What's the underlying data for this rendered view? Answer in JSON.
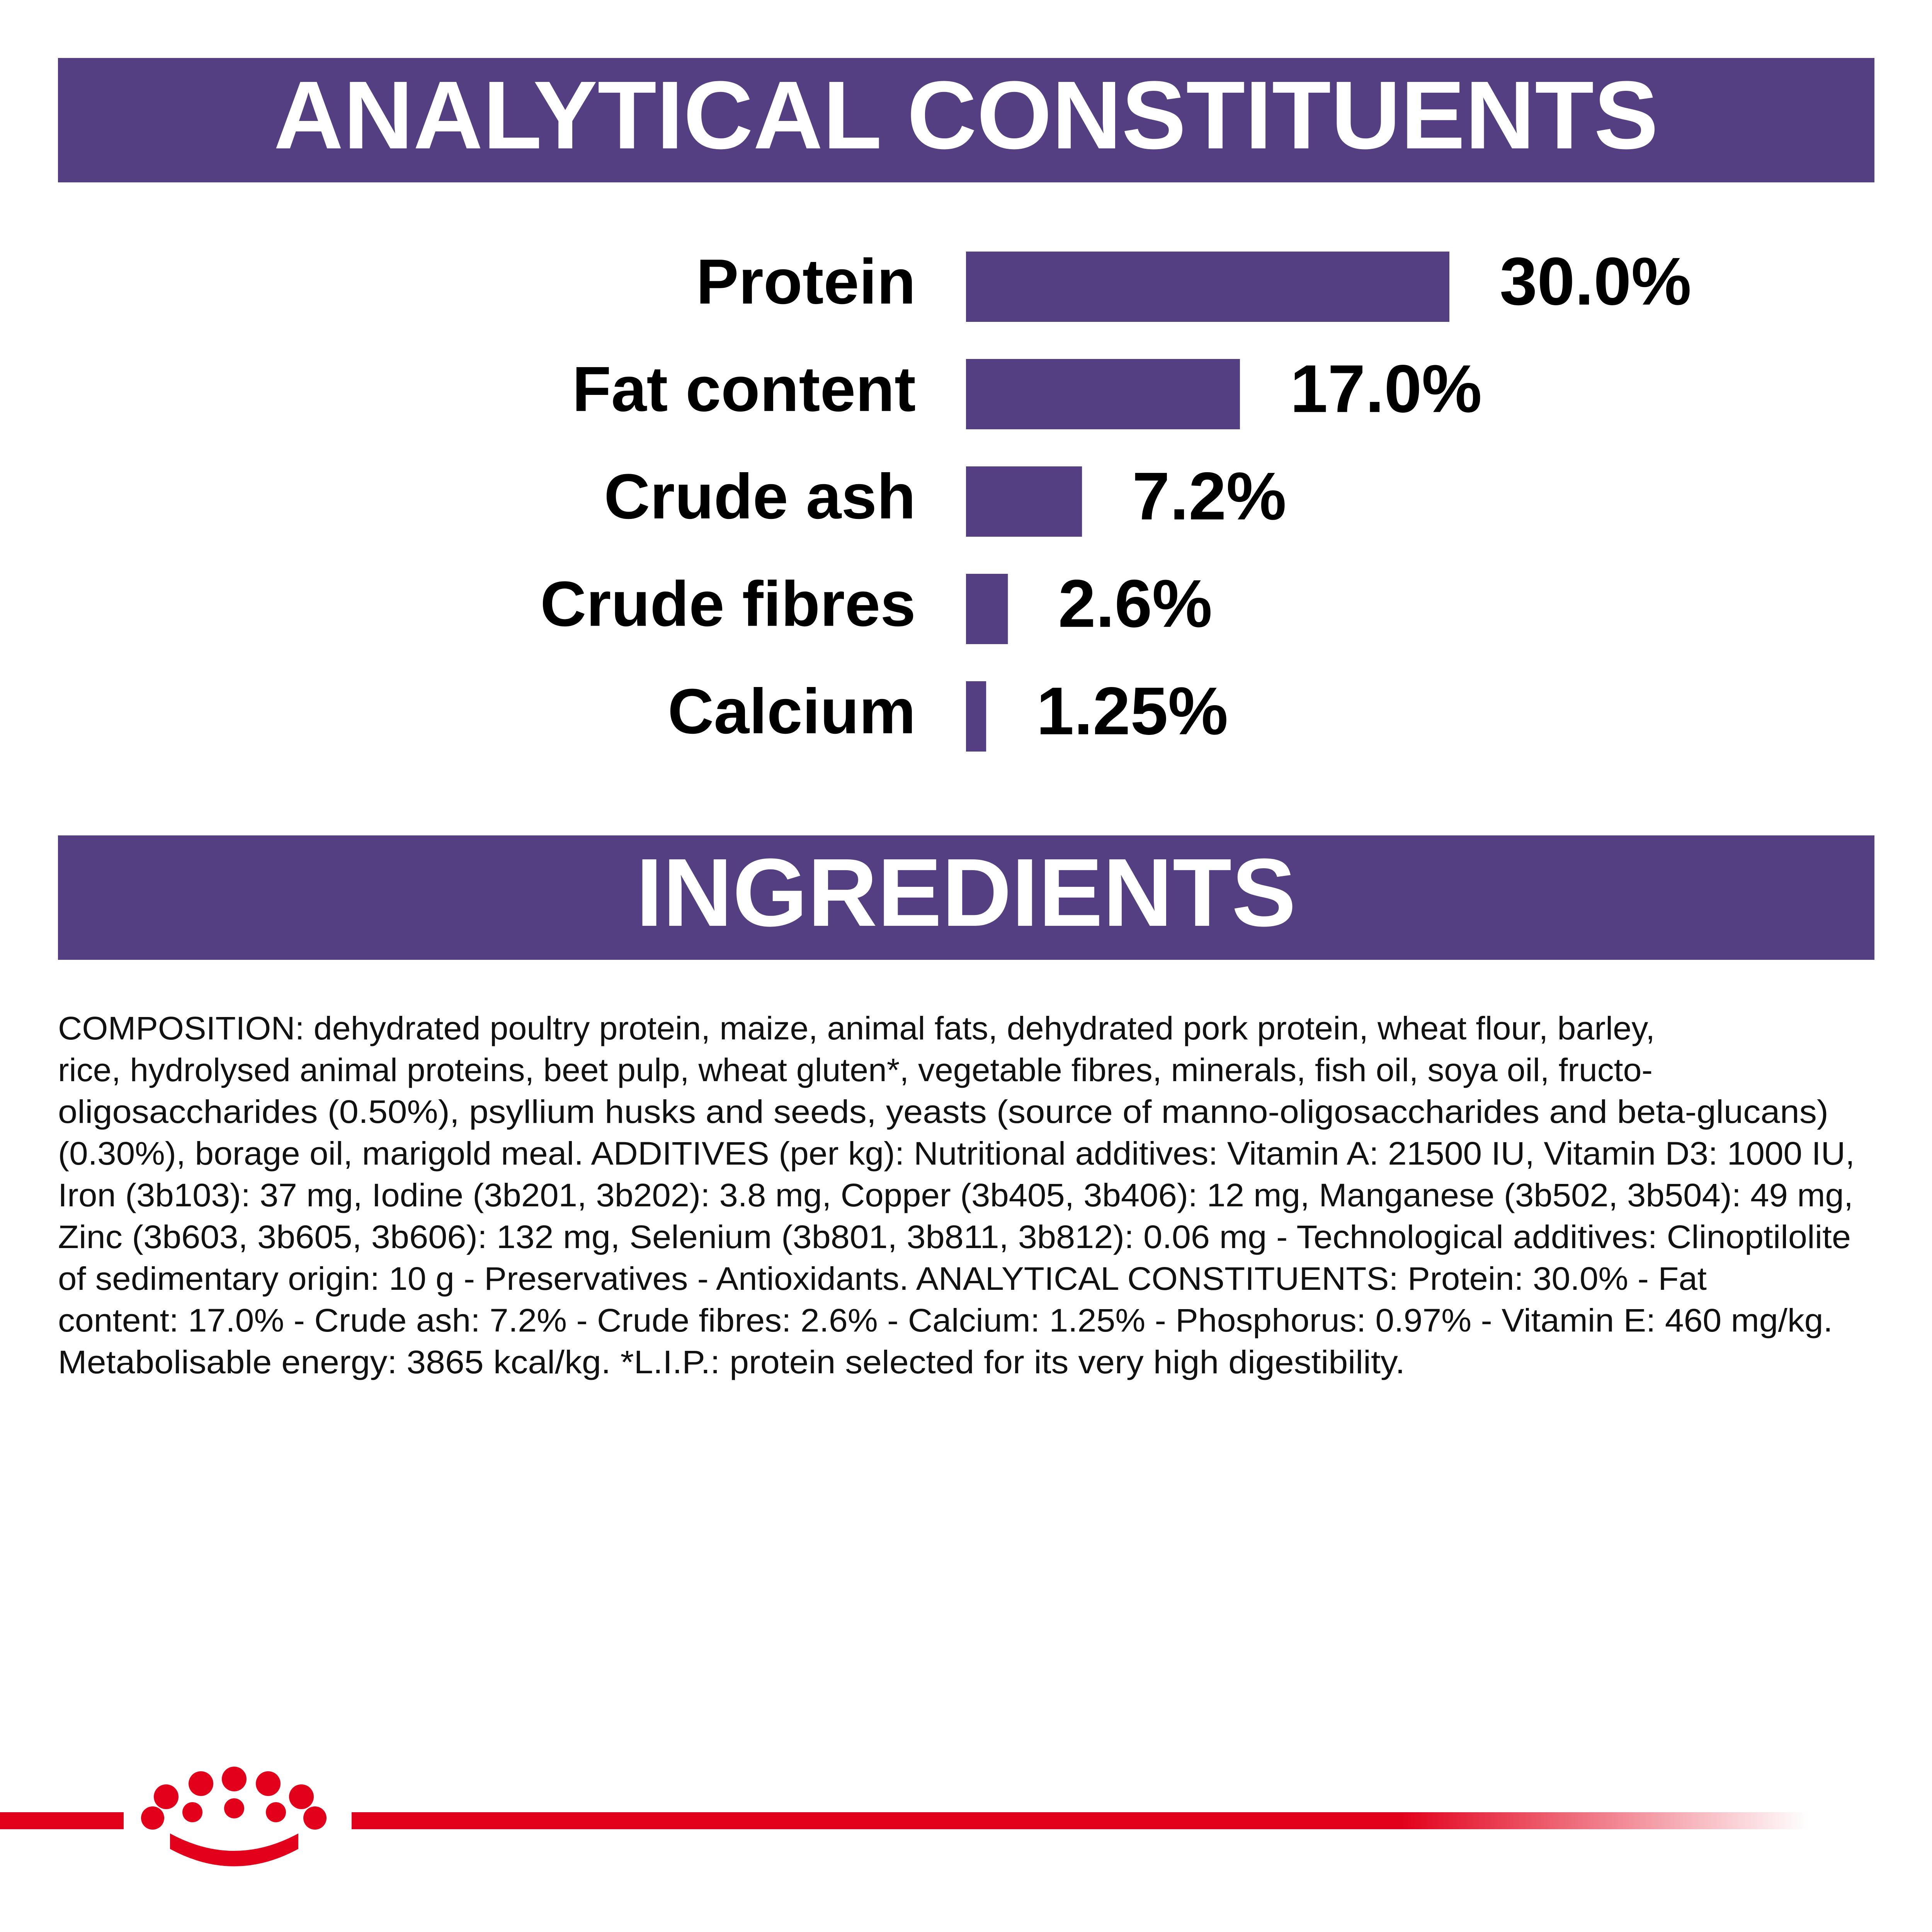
{
  "chart_data": {
    "type": "bar",
    "orientation": "horizontal",
    "title": "ANALYTICAL CONSTITUENTS",
    "categories": [
      "Protein",
      "Fat content",
      "Crude ash",
      "Crude fibres",
      "Calcium"
    ],
    "values": [
      30.0,
      17.0,
      7.2,
      2.6,
      1.25
    ],
    "value_labels": [
      "30.0%",
      "17.0%",
      "7.2%",
      "2.6%",
      "1.25%"
    ],
    "color": "#533f81"
  },
  "ingredients": {
    "title": "INGREDIENTS",
    "lines": [
      "COMPOSITION: dehydrated poultry protein, maize, animal fats, dehydrated pork protein, wheat flour, barley,",
      "rice, hydrolysed animal proteins, beet pulp, wheat gluten*, vegetable fibres, minerals, fish oil, soya oil, fructo-",
      "oligosaccharides (0.50%), psyllium husks and seeds, yeasts (source of manno-oligosaccharides and beta-glucans)",
      "(0.30%), borage oil, marigold meal. ADDITIVES (per kg): Nutritional additives: Vitamin A: 21500 IU, Vitamin D3: 1000 IU,",
      "Iron (3b103): 37 mg, Iodine (3b201, 3b202): 3.8 mg, Copper (3b405, 3b406): 12 mg, Manganese (3b502, 3b504): 49 mg,",
      "Zinc (3b603, 3b605, 3b606): 132 mg, Selenium (3b801, 3b811, 3b812): 0.06 mg - Technological additives: Clinoptilolite",
      "of sedimentary origin: 10 g - Preservatives - Antioxidants. ANALYTICAL CONSTITUENTS: Protein: 30.0% - Fat",
      "content: 17.0% - Crude ash: 7.2% - Crude fibres: 2.6% - Calcium: 1.25% - Phosphorus: 0.97% - Vitamin E: 460 mg/kg.",
      "Metabolisable energy: 3865 kcal/kg. *L.I.P.: protein selected for its very high digestibility."
    ]
  }
}
